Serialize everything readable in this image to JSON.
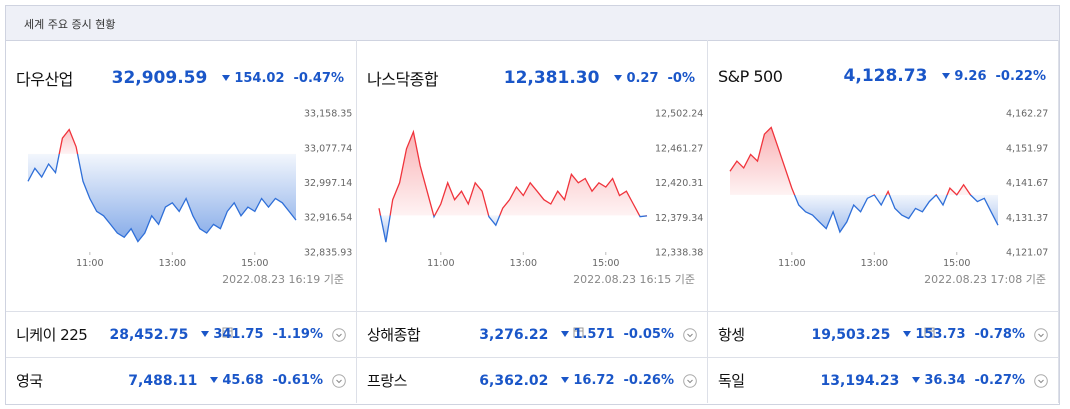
{
  "header": {
    "title": "세계 주요 증시 현황"
  },
  "indices": [
    {
      "name": "다우산업",
      "price": "32,909.59",
      "change": "154.02",
      "change_pct": "-0.47%",
      "timestamp": "2022.08.23 16:19 기준",
      "chart": {
        "type": "line",
        "color_up": "#f0343c",
        "color_down": "#2f6fd8",
        "base": 33063.61,
        "xlim": [
          570,
          960
        ],
        "xticks": [
          {
            "value": 660,
            "label": "11:00"
          },
          {
            "value": 780,
            "label": "13:00"
          },
          {
            "value": 900,
            "label": "15:00"
          }
        ],
        "ylim": [
          32835.93,
          33158.35
        ],
        "yticks": [
          {
            "value": 33158.35,
            "label": "33,158.35"
          },
          {
            "value": 33077.74,
            "label": "33,077.74"
          },
          {
            "value": 32997.14,
            "label": "32,997.14"
          },
          {
            "value": 32916.54,
            "label": "32,916.54"
          },
          {
            "value": 32835.93,
            "label": "32,835.93"
          }
        ],
        "x": [
          570,
          580,
          590,
          600,
          610,
          620,
          630,
          640,
          650,
          660,
          670,
          680,
          690,
          700,
          710,
          720,
          730,
          740,
          750,
          760,
          770,
          780,
          790,
          800,
          810,
          820,
          830,
          840,
          850,
          860,
          870,
          880,
          890,
          900,
          910,
          920,
          930,
          940,
          950,
          960
        ],
        "values": [
          33000,
          33030,
          33010,
          33040,
          33020,
          33100,
          33120,
          33080,
          33000,
          32960,
          32930,
          32920,
          32900,
          32880,
          32870,
          32890,
          32860,
          32880,
          32920,
          32900,
          32940,
          32950,
          32930,
          32960,
          32920,
          32890,
          32880,
          32900,
          32890,
          32930,
          32950,
          32920,
          32940,
          32930,
          32960,
          32940,
          32960,
          32950,
          32930,
          32910
        ]
      }
    },
    {
      "name": "나스닥종합",
      "price": "12,381.30",
      "change": "0.27",
      "change_pct": "-0%",
      "timestamp": "2022.08.23 16:15 기준",
      "chart": {
        "type": "line",
        "color_up": "#f0343c",
        "color_down": "#2f6fd8",
        "base": 12381.57,
        "xlim": [
          570,
          960
        ],
        "xticks": [
          {
            "value": 660,
            "label": "11:00"
          },
          {
            "value": 780,
            "label": "13:00"
          },
          {
            "value": 900,
            "label": "15:00"
          }
        ],
        "ylim": [
          12338.38,
          12502.24
        ],
        "yticks": [
          {
            "value": 12502.24,
            "label": "12,502.24"
          },
          {
            "value": 12461.27,
            "label": "12,461.27"
          },
          {
            "value": 12420.31,
            "label": "12,420.31"
          },
          {
            "value": 12379.34,
            "label": "12,379.34"
          },
          {
            "value": 12338.38,
            "label": "12,338.38"
          }
        ],
        "x": [
          570,
          580,
          590,
          600,
          610,
          620,
          630,
          640,
          650,
          660,
          670,
          680,
          690,
          700,
          710,
          720,
          730,
          740,
          750,
          760,
          770,
          780,
          790,
          800,
          810,
          820,
          830,
          840,
          850,
          860,
          870,
          880,
          890,
          900,
          910,
          920,
          930,
          940,
          950,
          960
        ],
        "values": [
          12390,
          12350,
          12400,
          12420,
          12460,
          12480,
          12440,
          12410,
          12380,
          12395,
          12420,
          12400,
          12410,
          12395,
          12420,
          12410,
          12380,
          12370,
          12390,
          12400,
          12415,
          12405,
          12420,
          12410,
          12400,
          12395,
          12410,
          12400,
          12430,
          12420,
          12425,
          12410,
          12420,
          12415,
          12425,
          12405,
          12410,
          12395,
          12380,
          12381
        ]
      }
    },
    {
      "name": "S&P 500",
      "price": "4,128.73",
      "change": "9.26",
      "change_pct": "-0.22%",
      "timestamp": "2022.08.23 17:08 기준",
      "chart": {
        "type": "line",
        "color_up": "#f0343c",
        "color_down": "#2f6fd8",
        "base": 4137.99,
        "xlim": [
          570,
          960
        ],
        "xticks": [
          {
            "value": 660,
            "label": "11:00"
          },
          {
            "value": 780,
            "label": "13:00"
          },
          {
            "value": 900,
            "label": "15:00"
          }
        ],
        "ylim": [
          4121.07,
          4162.27
        ],
        "yticks": [
          {
            "value": 4162.27,
            "label": "4,162.27"
          },
          {
            "value": 4151.97,
            "label": "4,151.97"
          },
          {
            "value": 4141.67,
            "label": "4,141.67"
          },
          {
            "value": 4131.37,
            "label": "4,131.37"
          },
          {
            "value": 4121.07,
            "label": "4,121.07"
          }
        ],
        "x": [
          570,
          580,
          590,
          600,
          610,
          620,
          630,
          640,
          650,
          660,
          670,
          680,
          690,
          700,
          710,
          720,
          730,
          740,
          750,
          760,
          770,
          780,
          790,
          800,
          810,
          820,
          830,
          840,
          850,
          860,
          870,
          880,
          890,
          900,
          910,
          920,
          930,
          940,
          950,
          960
        ],
        "values": [
          4145,
          4148,
          4146,
          4150,
          4148,
          4156,
          4158,
          4152,
          4146,
          4140,
          4135,
          4133,
          4132,
          4130,
          4128,
          4133,
          4127,
          4130,
          4135,
          4133,
          4137,
          4138,
          4135,
          4139,
          4134,
          4132,
          4131,
          4134,
          4133,
          4136,
          4138,
          4135,
          4140,
          4138,
          4141,
          4138,
          4136,
          4137,
          4133,
          4129
        ]
      }
    }
  ],
  "others": [
    {
      "name": "니케이 225",
      "price": "28,452.75",
      "change": "341.75",
      "change_pct": "-1.19%"
    },
    {
      "name": "상해종합",
      "price": "3,276.22",
      "change": "1.571",
      "change_pct": "-0.05%"
    },
    {
      "name": "항셍",
      "price": "19,503.25",
      "change": "153.73",
      "change_pct": "-0.78%"
    },
    {
      "name": "영국",
      "price": "7,488.11",
      "change": "45.68",
      "change_pct": "-0.61%"
    },
    {
      "name": "프랑스",
      "price": "6,362.02",
      "change": "16.72",
      "change_pct": "-0.26%"
    },
    {
      "name": "독일",
      "price": "13,194.23",
      "change": "36.34",
      "change_pct": "-0.27%"
    }
  ]
}
